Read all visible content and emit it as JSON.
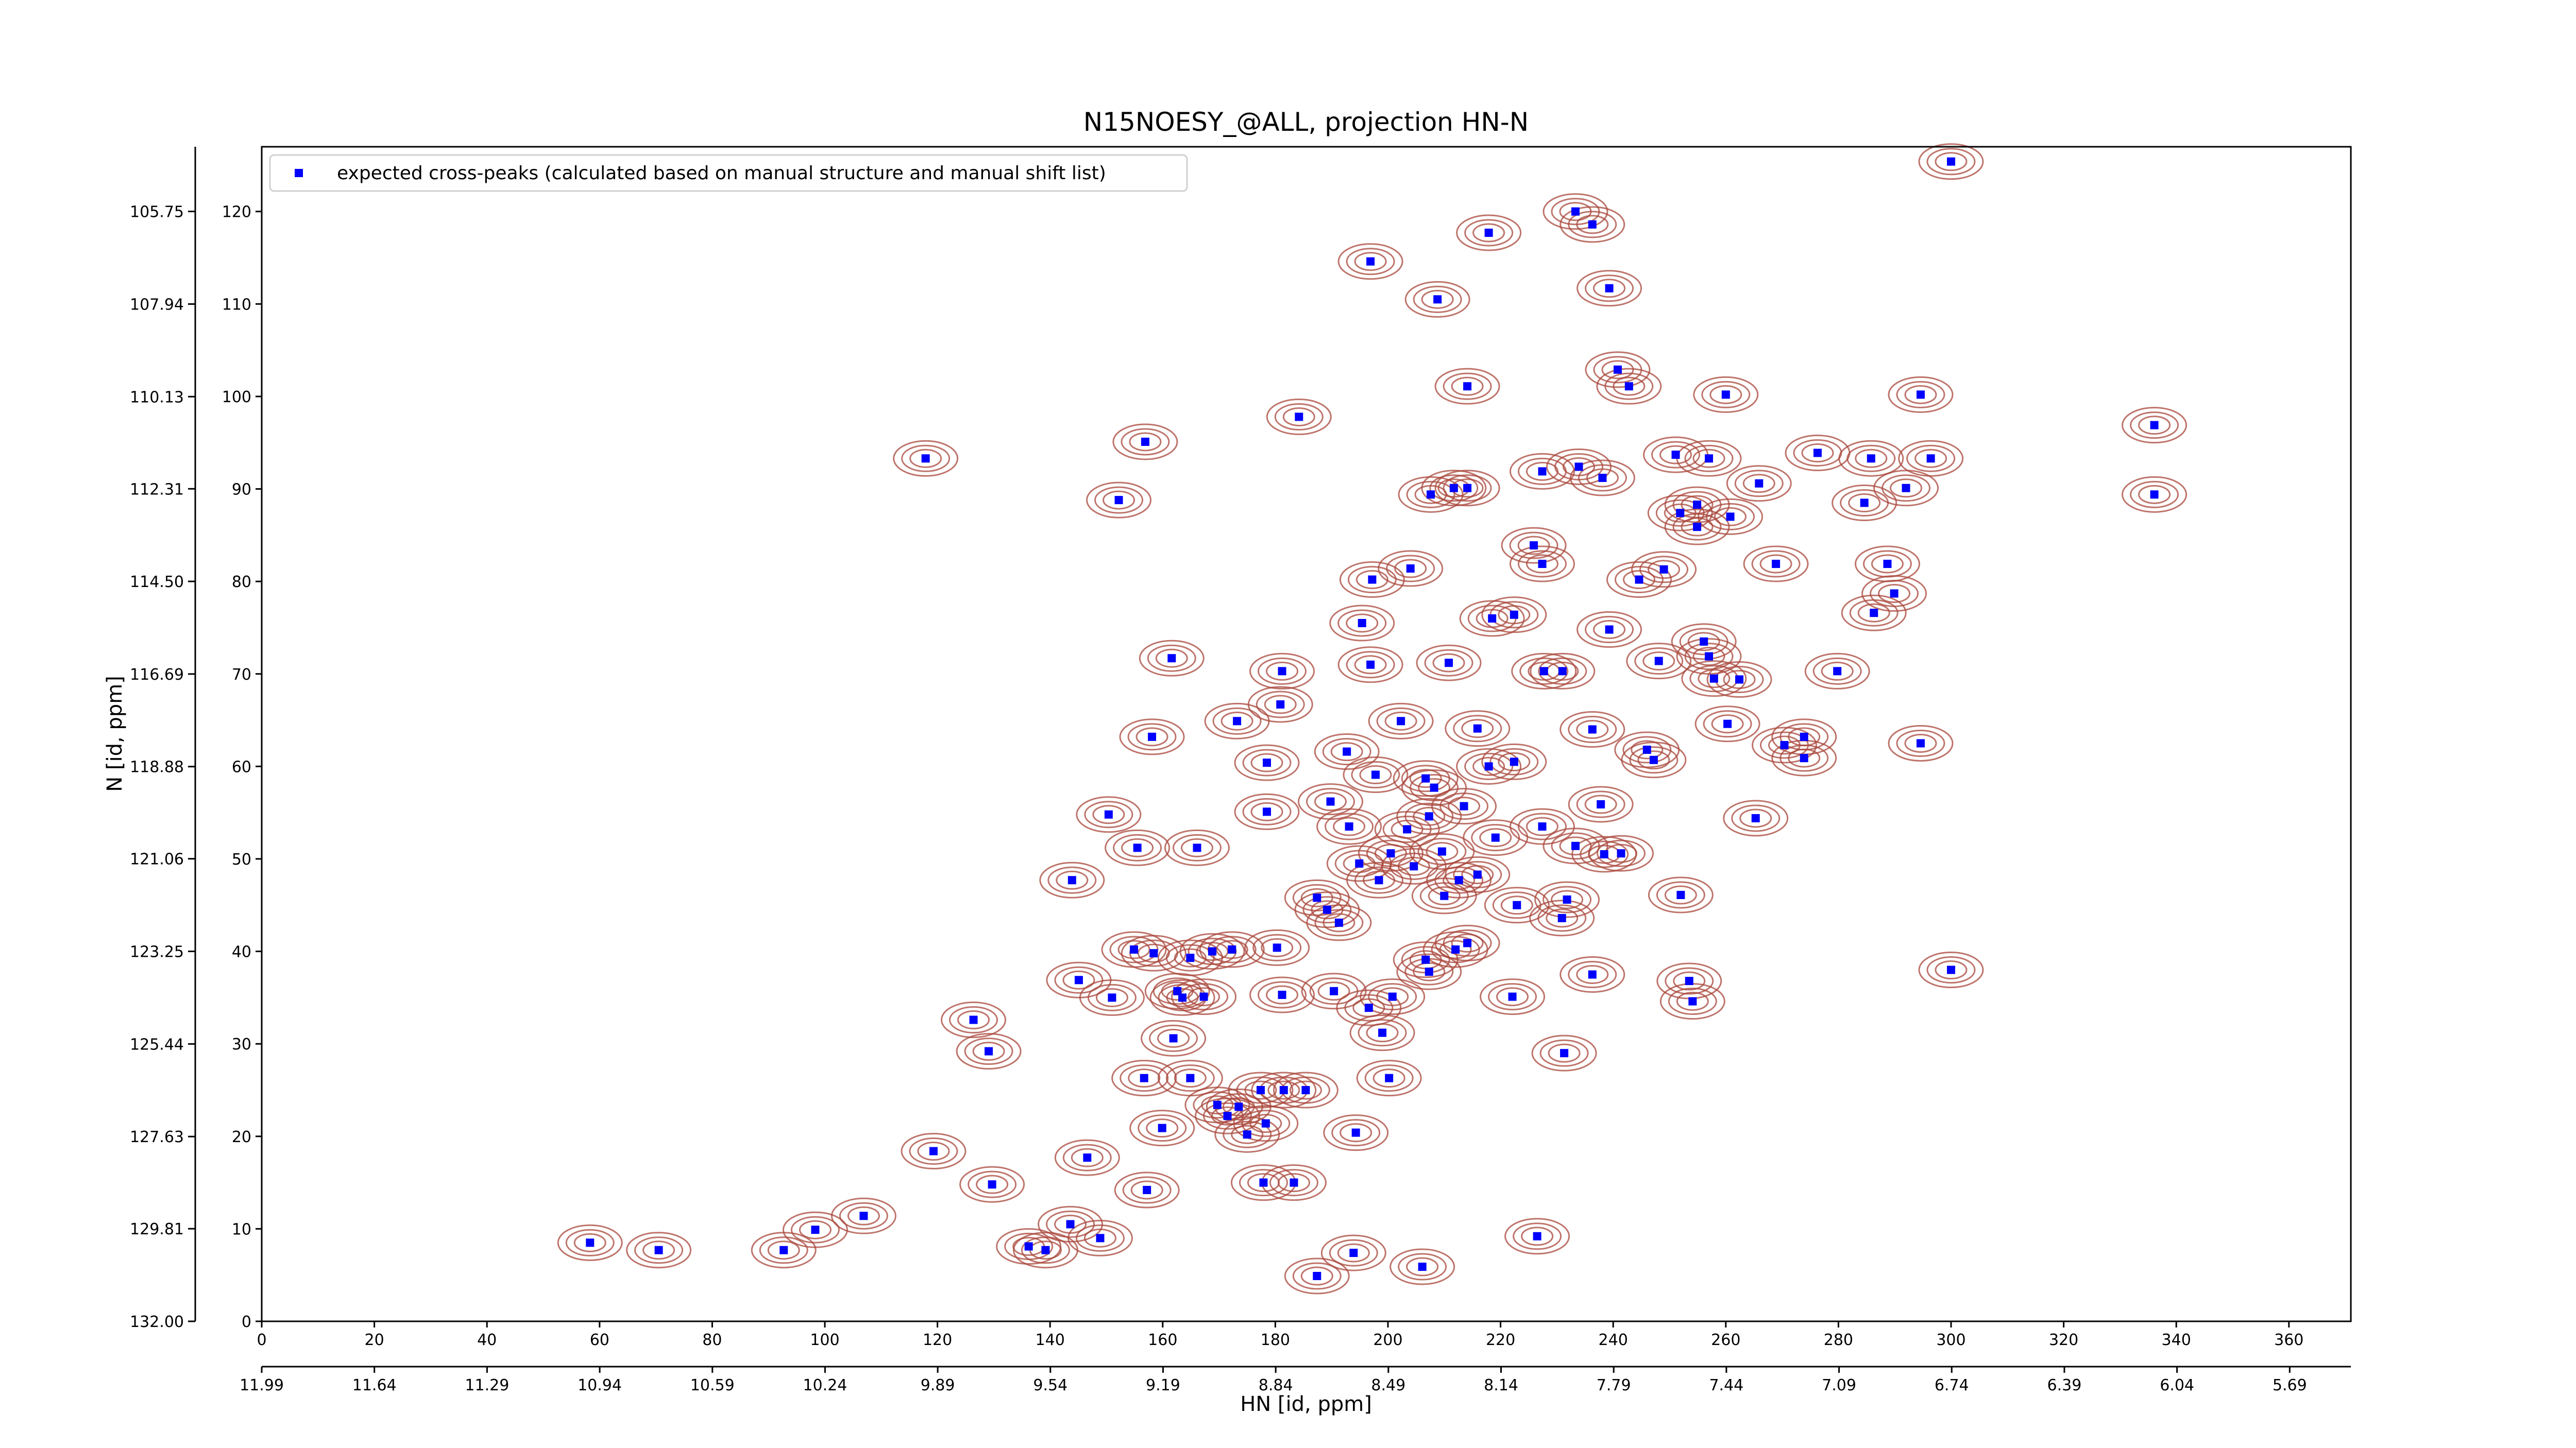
{
  "chart_data": {
    "type": "scatter",
    "title": "N15NOESY_@ALL, projection HN-N",
    "xlabel": "HN [id, ppm]",
    "ylabel": "N [id, ppm]",
    "xlim": [
      0,
      371
    ],
    "xticks": [
      0,
      20,
      40,
      60,
      80,
      100,
      120,
      140,
      160,
      180,
      200,
      220,
      240,
      260,
      280,
      300,
      320,
      340,
      360
    ],
    "ylim": [
      0,
      127
    ],
    "yticks": [
      0,
      10,
      20,
      30,
      40,
      50,
      60,
      70,
      80,
      90,
      100,
      110,
      120
    ],
    "x2lim": [
      11.99,
      5.5
    ],
    "x2ticks": [
      11.99,
      11.64,
      11.29,
      10.94,
      10.59,
      10.24,
      9.89,
      9.54,
      9.19,
      8.84,
      8.49,
      8.14,
      7.79,
      7.44,
      7.09,
      6.74,
      6.39,
      6.04,
      5.69
    ],
    "y2lim": [
      132,
      104.22
    ],
    "y2ticks": [
      {
        "value": 132,
        "label": "132.00"
      },
      129.81,
      127.63,
      125.44,
      123.25,
      121.06,
      118.88,
      116.69,
      {
        "value": 114.5,
        "label": "114.50"
      },
      112.31,
      110.13,
      107.94,
      105.75
    ],
    "legend": "upper left",
    "contour_color": "#a8453a",
    "series": [
      {
        "name": "expected cross-peaks (calculated based on manual structure and manual shift list)",
        "color": "#0000ff",
        "x": [
          300,
          233.3,
          236.3,
          217.9,
          196.9,
          208.8,
          239.3,
          240.8,
          242.8,
          214.1,
          260,
          294.6,
          184.2,
          336.1,
          156.9,
          117.9,
          276.3,
          285.8,
          296.4,
          251.1,
          257,
          233.9,
          227.4,
          238.1,
          265.9,
          292,
          214.1,
          211.7,
          207.6,
          336.1,
          152.2,
          284.6,
          254.9,
          251.9,
          260.8,
          254.9,
          225.9,
          227.4,
          288.7,
          268.9,
          249,
          204,
          197.2,
          244.6,
          289.9,
          286.3,
          218.5,
          222.4,
          195.4,
          239.3,
          256.1,
          161.6,
          196.9,
          210.8,
          257,
          248.1,
          181.2,
          279.8,
          227.7,
          231,
          257.9,
          262.4,
          180.9,
          260.3,
          173.2,
          202.3,
          215.9,
          158.1,
          236.3,
          273.9,
          294.6,
          270.4,
          192.7,
          246,
          247.2,
          273.9,
          222.4,
          178.5,
          217.9,
          206.7,
          208.2,
          197.8,
          189.8,
          213.5,
          237.8,
          178.5,
          150.4,
          265.3,
          207.3,
          193.1,
          227.4,
          203.4,
          219.1,
          233.3,
          166.1,
          155.5,
          209.6,
          238.4,
          241.4,
          200.5,
          194.9,
          204.6,
          198.4,
          212.6,
          215.9,
          143.9,
          210,
          187.4,
          252,
          222.9,
          189.2,
          231.8,
          230.9,
          191.3,
          214.1,
          212,
          154.9,
          158.4,
          168.8,
          172.3,
          180.3,
          164.9,
          206.7,
          300,
          207.3,
          236.3,
          145.1,
          253.5,
          162.6,
          163.5,
          190.4,
          181.2,
          167.3,
          151,
          200.8,
          222.1,
          254.1,
          196.6,
          126.4,
          199,
          161.9,
          129.1,
          231.3,
          200.2,
          156.7,
          164.9,
          181.5,
          185.4,
          177.4,
          169.7,
          173.5,
          171.5,
          178.3,
          159.9,
          194.3,
          175,
          119.3,
          146.6,
          129.7,
          177.9,
          183.3,
          157.2,
          106.9,
          143.6,
          98.3,
          226.5,
          148.9,
          58.3,
          136.2,
          139.2,
          70.5,
          92.7,
          193.9,
          206.1,
          187.4
        ],
        "values": [
          125.4,
          120,
          118.6,
          117.7,
          114.6,
          110.5,
          111.7,
          102.9,
          101.1,
          101.1,
          100.2,
          100.2,
          97.8,
          96.9,
          95.1,
          93.3,
          93.9,
          93.3,
          93.3,
          93.7,
          93.3,
          92.4,
          91.9,
          91.2,
          90.6,
          90.1,
          90.1,
          90.1,
          89.4,
          89.4,
          88.8,
          88.5,
          88.3,
          87.4,
          87,
          85.9,
          83.9,
          81.9,
          81.9,
          81.9,
          81.3,
          81.4,
          80.2,
          80.2,
          78.7,
          76.6,
          76,
          76.4,
          75.5,
          74.8,
          73.5,
          71.7,
          71,
          71.2,
          71.9,
          71.4,
          70.3,
          70.3,
          70.3,
          70.3,
          69.5,
          69.4,
          66.7,
          64.6,
          64.9,
          64.9,
          64.1,
          63.2,
          64,
          63.2,
          62.5,
          62.3,
          61.6,
          61.8,
          60.7,
          60.9,
          60.5,
          60.4,
          60,
          58.7,
          57.7,
          59.1,
          56.2,
          55.7,
          55.9,
          55.1,
          54.8,
          54.4,
          54.6,
          53.5,
          53.5,
          53.2,
          52.3,
          51.4,
          51.2,
          51.2,
          50.8,
          50.5,
          50.6,
          50.6,
          49.5,
          49.2,
          47.7,
          47.7,
          48.3,
          47.7,
          46,
          45.8,
          46.1,
          45,
          44.5,
          45.6,
          43.6,
          43.1,
          40.9,
          40.2,
          40.2,
          39.8,
          40,
          40.2,
          40.4,
          39.3,
          39.1,
          38,
          37.8,
          37.5,
          36.9,
          36.8,
          35.7,
          35,
          35.7,
          35.3,
          35.1,
          35,
          35.1,
          35.1,
          34.6,
          33.9,
          32.6,
          31.2,
          30.6,
          29.2,
          29,
          26.3,
          26.3,
          26.3,
          25,
          25,
          25,
          23.4,
          23.2,
          22.2,
          21.4,
          20.9,
          20.4,
          20.2,
          18.4,
          17.7,
          14.8,
          15,
          15,
          14.2,
          11.4,
          10.5,
          9.9,
          9.2,
          9,
          8.5,
          8.1,
          7.7,
          7.7,
          7.7,
          7.4,
          5.9,
          4.9
        ]
      }
    ]
  }
}
